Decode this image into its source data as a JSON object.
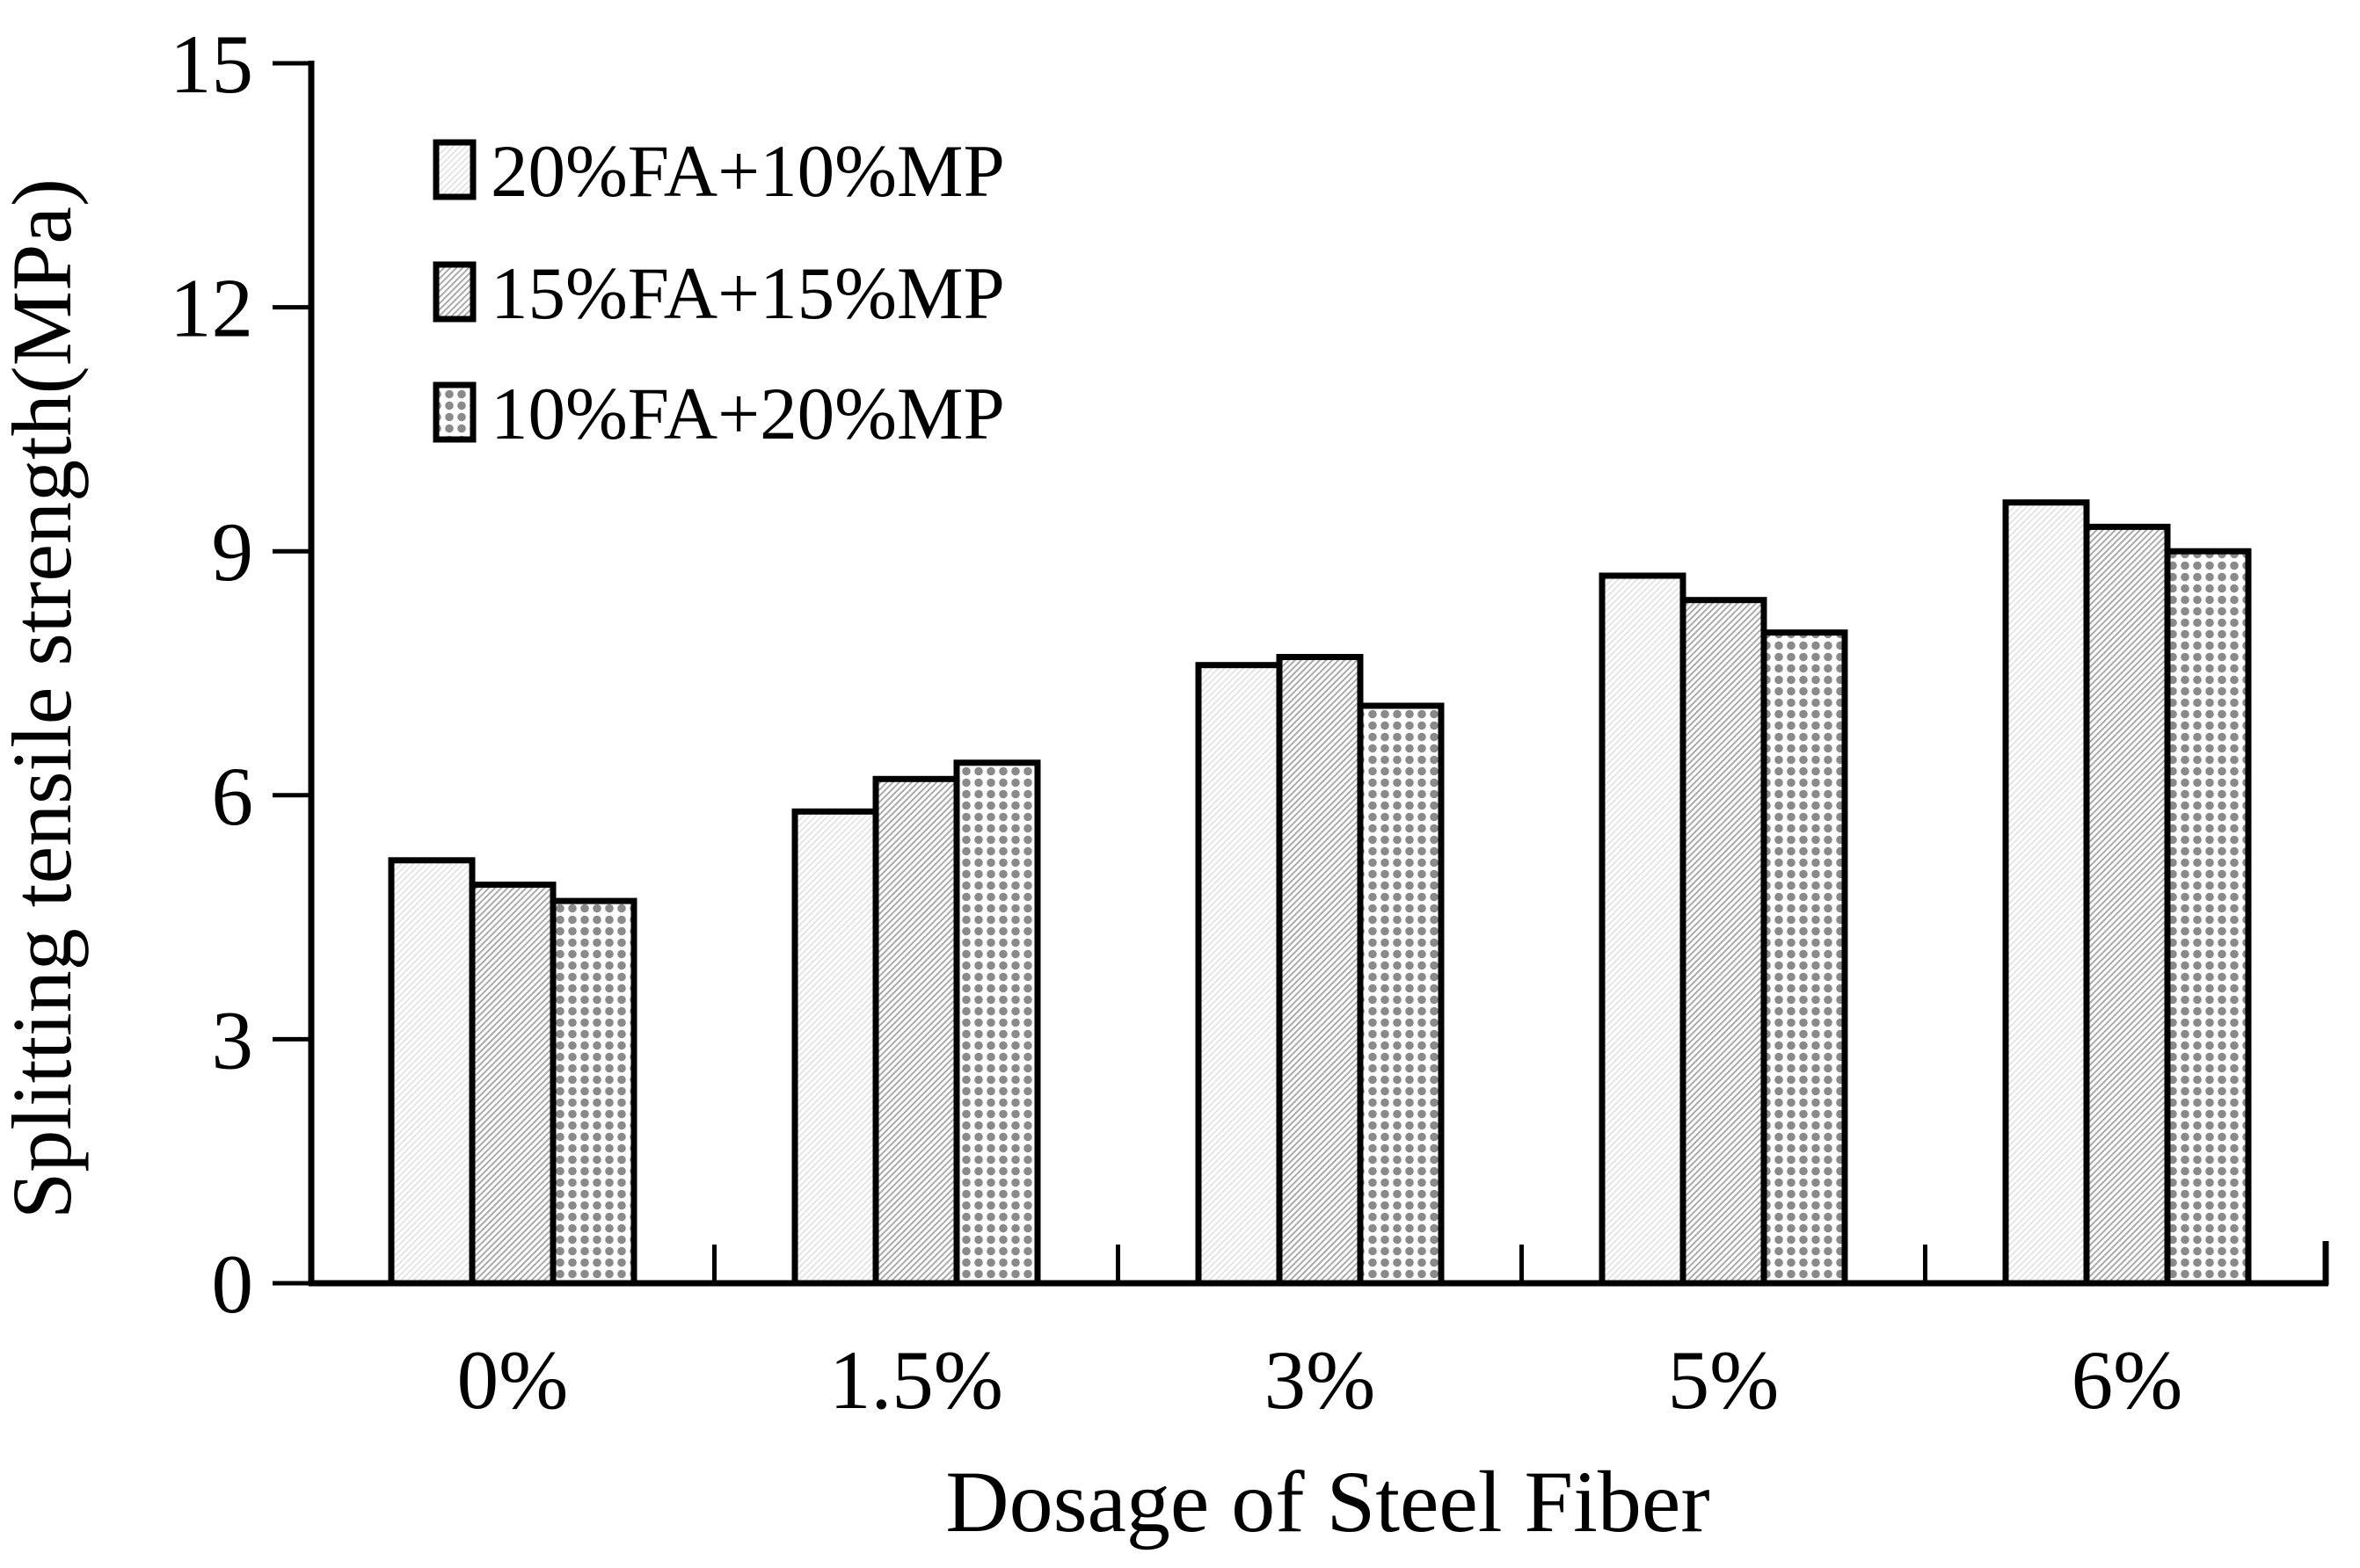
{
  "chart_data": {
    "type": "bar",
    "title": "",
    "xlabel": "Dosage of Steel Fiber",
    "ylabel": "Splitting tensile strength(MPa)",
    "categories": [
      "0%",
      "1.5%",
      "3%",
      "5%",
      "6%"
    ],
    "series": [
      {
        "name": "20%FA+10%MP",
        "pattern": "light-speckle-hatch",
        "values": [
          5.2,
          5.8,
          7.6,
          8.7,
          9.6
        ]
      },
      {
        "name": "15%FA+15%MP",
        "pattern": "diagonal-hatch",
        "values": [
          4.9,
          6.2,
          7.7,
          8.4,
          9.3
        ]
      },
      {
        "name": "10%FA+20%MP",
        "pattern": "dot-grid",
        "values": [
          4.7,
          6.4,
          7.1,
          8.0,
          9.0
        ]
      }
    ],
    "ylim": [
      0,
      15
    ],
    "yticks": [
      "0",
      "3",
      "6",
      "9",
      "12",
      "15"
    ],
    "legend_position": "top-left",
    "grid": false,
    "colors": {
      "background": "#ffffff",
      "axis": "#000000",
      "text": "#000000",
      "bar_outline": "#000000",
      "speckle_hatch": "#e2e2e2",
      "diagonal_hatch": "#ababab",
      "dot_fill": "#8a8a8a"
    }
  }
}
